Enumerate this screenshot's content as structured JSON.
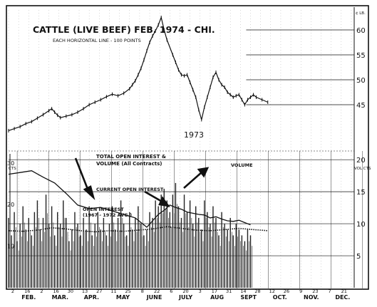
{
  "chart_data": {
    "type": "line",
    "title": "CATTLE (LIVE BEEF) FEB. 1974 - CHI.",
    "subtitle": "EACH HORIZONTAL LINE - 100 POINTS",
    "year_label": "1973",
    "price_axis": {
      "unit_label": "¢ LB.",
      "ticks": [
        45,
        50,
        55,
        60
      ],
      "range": [
        38,
        64
      ]
    },
    "lower_axis": {
      "left_label": "CTS",
      "right_label": "VOL CTS",
      "ticks_right": [
        5,
        10,
        15,
        20
      ],
      "ticks_left": [
        10,
        20,
        30
      ],
      "range": [
        0,
        23
      ]
    },
    "x_axis": {
      "day_labels": [
        "2",
        "16",
        "2",
        "16",
        "30",
        "13",
        "27",
        "11",
        "25",
        "8",
        "22",
        "6",
        "20",
        "3",
        "17",
        "31",
        "14",
        "28",
        "12",
        "26",
        "9",
        "23",
        "7",
        "21"
      ],
      "month_labels": [
        "FEB.",
        "MAR.",
        "APR.",
        "MAY",
        "JUNE",
        "JULY",
        "AUG",
        "SEPT",
        "OCT.",
        "NOV.",
        "DEC."
      ]
    },
    "annotations": {
      "total_oi": "TOTAL OPEN INTEREST & VOLUME (All Contracts)",
      "volume": "VOLUME",
      "current_oi": "CURRENT OPEN INTEREST",
      "avg_oi_line1": "OPEN INTEREST",
      "avg_oi_line2": "(1967 - 1972 AVG.)"
    },
    "series": [
      {
        "name": "price",
        "x": [
          0,
          4,
          8,
          12,
          16,
          20,
          24,
          28,
          30,
          32,
          34,
          36,
          40,
          44,
          48,
          52,
          56,
          60,
          64,
          68,
          72,
          76,
          80,
          84,
          86,
          88,
          90,
          92,
          94,
          96,
          98,
          100,
          102,
          104,
          106,
          108,
          110,
          114,
          116,
          118,
          120,
          122,
          124,
          126,
          128,
          130,
          132,
          134,
          136,
          138,
          140,
          142,
          144,
          146,
          148,
          150,
          152,
          154,
          156,
          158,
          160,
          162,
          164,
          166,
          168,
          170,
          172,
          176,
          180
        ],
        "values": [
          39.8,
          40.2,
          40.6,
          41.2,
          41.6,
          42.3,
          43.0,
          43.8,
          44.2,
          43.5,
          42.9,
          42.4,
          42.7,
          43.0,
          43.5,
          44.2,
          45.0,
          45.5,
          46.0,
          46.6,
          47.1,
          46.8,
          47.3,
          48.2,
          49.0,
          49.8,
          51.0,
          52.3,
          54.0,
          55.8,
          57.5,
          58.8,
          59.8,
          61.0,
          62.5,
          60.0,
          58.0,
          55.0,
          53.5,
          52.0,
          51.0,
          50.8,
          51.0,
          49.5,
          48.0,
          46.5,
          44.0,
          42.0,
          44.5,
          46.5,
          48.5,
          50.5,
          51.5,
          50.0,
          49.0,
          48.5,
          47.5,
          47.0,
          46.5,
          46.8,
          47.0,
          46.0,
          45.0,
          46.0,
          46.5,
          47.0,
          46.5,
          46.0,
          45.5
        ]
      },
      {
        "name": "total_open_interest",
        "x": [
          0,
          8,
          16,
          24,
          32,
          40,
          48,
          56,
          64,
          72,
          80,
          88,
          96,
          100,
          104,
          108,
          112,
          116,
          120,
          124,
          128,
          132,
          136,
          140,
          144,
          148,
          152,
          156,
          160,
          164,
          168
        ],
        "values": [
          19.5,
          19.8,
          20.1,
          19.0,
          18.0,
          16.2,
          14.2,
          13.6,
          13.8,
          13.2,
          12.6,
          12.0,
          10.4,
          11.5,
          12.6,
          13.3,
          14.2,
          13.8,
          13.5,
          13.0,
          12.8,
          12.6,
          12.5,
          12.0,
          12.2,
          11.8,
          11.5,
          11.4,
          11.6,
          11.2,
          10.8
        ]
      },
      {
        "name": "avg_open_interest",
        "x": [
          0,
          10,
          20,
          30,
          40,
          50,
          60,
          70,
          80,
          90,
          100,
          110,
          120,
          130,
          140,
          150,
          160,
          170,
          180
        ],
        "values": [
          9.8,
          9.7,
          9.9,
          10.3,
          10.1,
          9.8,
          9.6,
          9.8,
          9.7,
          9.9,
          10.1,
          10.5,
          10.2,
          9.9,
          9.8,
          10.0,
          10.2,
          10.0,
          9.8
        ]
      },
      {
        "name": "volume",
        "x": [
          0,
          2,
          4,
          6,
          8,
          10,
          12,
          14,
          16,
          18,
          20,
          22,
          24,
          26,
          28,
          30,
          32,
          34,
          36,
          38,
          40,
          42,
          44,
          46,
          48,
          50,
          52,
          54,
          56,
          58,
          60,
          62,
          64,
          66,
          68,
          70,
          72,
          74,
          76,
          78,
          80,
          82,
          84,
          86,
          88,
          90,
          92,
          94,
          96,
          98,
          100,
          102,
          104,
          106,
          108,
          110,
          112,
          114,
          116,
          118,
          120,
          122,
          124,
          126,
          128,
          130,
          132,
          134,
          136,
          138,
          140,
          142,
          144,
          146,
          148,
          150,
          152,
          154,
          156,
          158,
          160,
          162,
          164,
          166,
          168
        ],
        "values": [
          12,
          9,
          13,
          8,
          11,
          14,
          10,
          12,
          9,
          13,
          15,
          10,
          12,
          16,
          11,
          14,
          9,
          13,
          11,
          15,
          12,
          8,
          10,
          13,
          11,
          9,
          12,
          10,
          14,
          9,
          11,
          13,
          10,
          12,
          9,
          11,
          14,
          10,
          12,
          15,
          11,
          9,
          13,
          10,
          12,
          14,
          11,
          9,
          10,
          13,
          12,
          15,
          14,
          16,
          17,
          15,
          13,
          16,
          18,
          14,
          12,
          16,
          13,
          15,
          11,
          14,
          12,
          10,
          15,
          13,
          11,
          14,
          12,
          9,
          13,
          11,
          10,
          12,
          9,
          11,
          10,
          9,
          8,
          10,
          9
        ]
      }
    ]
  }
}
